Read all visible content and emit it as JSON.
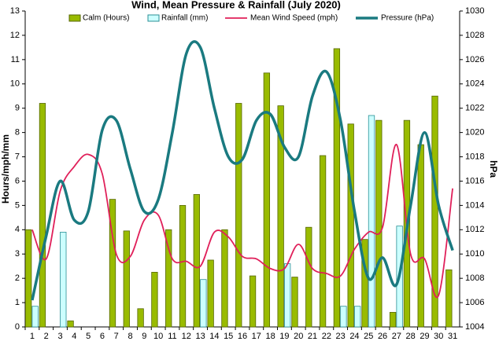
{
  "chart_data": {
    "type": "bar-line",
    "title": "Wind, Mean Pressure & Rainfall (July 2020)",
    "ylabel": "Hours/mph/mm",
    "y2label": "hPa",
    "categories": [
      "1",
      "2",
      "3",
      "4",
      "5",
      "6",
      "7",
      "8",
      "9",
      "10",
      "11",
      "12",
      "13",
      "14",
      "15",
      "16",
      "17",
      "18",
      "19",
      "20",
      "21",
      "22",
      "23",
      "24",
      "25",
      "26",
      "27",
      "28",
      "29",
      "30",
      "31"
    ],
    "series": [
      {
        "name": "Calm (Hours)",
        "type": "bar",
        "color": "#99bb00",
        "values": [
          4.0,
          9.2,
          0,
          0.25,
          0,
          0,
          5.25,
          3.95,
          0.75,
          2.25,
          4.0,
          5.0,
          5.45,
          2.75,
          4.0,
          9.2,
          2.1,
          10.45,
          9.1,
          2.05,
          4.1,
          7.05,
          11.45,
          8.35,
          3.6,
          8.5,
          0.6,
          8.5,
          7.5,
          9.5,
          2.35
        ]
      },
      {
        "name": "Rainfall (mm)",
        "type": "bar",
        "color": "#ccffff",
        "values": [
          0.85,
          0,
          3.9,
          0,
          0,
          0,
          0,
          0,
          0,
          0,
          0,
          0,
          1.95,
          0,
          0,
          0,
          0,
          0,
          2.6,
          0,
          0,
          0,
          0.85,
          0.85,
          8.7,
          0,
          4.15,
          0,
          0,
          0,
          0
        ]
      },
      {
        "name": "Mean Wind Speed (mph)",
        "type": "line",
        "color": "#e0205a",
        "values": [
          4.0,
          2.8,
          5.6,
          6.6,
          7.1,
          6.3,
          3.0,
          2.9,
          4.4,
          4.6,
          2.8,
          2.7,
          2.5,
          3.9,
          3.7,
          2.9,
          2.8,
          2.4,
          2.4,
          3.4,
          2.4,
          2.2,
          2.1,
          3.2,
          3.9,
          4.1,
          7.5,
          3.0,
          2.8,
          1.3,
          5.7
        ]
      },
      {
        "name": "Pressure (hPa)",
        "type": "line",
        "axis": "y2",
        "color": "#1a7a80",
        "values": [
          1006.2,
          1011.5,
          1016,
          1012.8,
          1013.5,
          1020.2,
          1021,
          1017,
          1013.5,
          1014.5,
          1020,
          1026.5,
          1027,
          1022,
          1018,
          1017.8,
          1021,
          1021.5,
          1018.8,
          1018,
          1023,
          1025,
          1021,
          1013.5,
          1008,
          1009.7,
          1007.5,
          1014,
          1020,
          1014,
          1010.3
        ]
      }
    ],
    "ylim": [
      0,
      13
    ],
    "yticks": [
      0,
      1,
      2,
      3,
      4,
      5,
      6,
      7,
      8,
      9,
      10,
      11,
      12,
      13
    ],
    "y2lim": [
      1004,
      1030
    ],
    "y2ticks": [
      1004,
      1006,
      1008,
      1010,
      1012,
      1014,
      1016,
      1018,
      1020,
      1022,
      1024,
      1026,
      1028,
      1030
    ]
  }
}
